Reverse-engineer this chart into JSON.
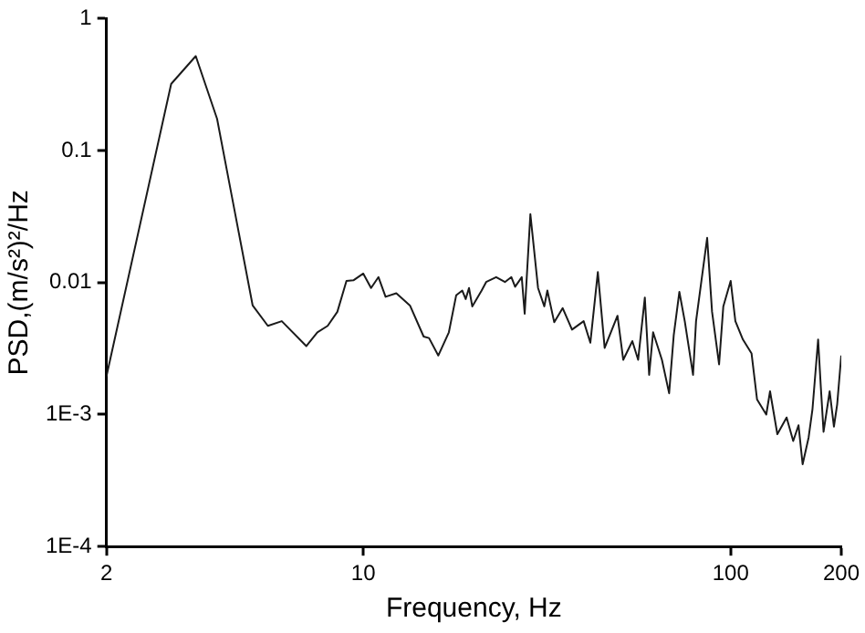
{
  "chart_data": {
    "type": "line",
    "xlabel": "Frequency, Hz",
    "ylabel": "PSD,(m/s²)²/Hz",
    "log": "xy",
    "grid": false,
    "legend": false,
    "marker": "none",
    "line_style": "solid",
    "xlim": [
      2,
      200
    ],
    "xticks": [
      2,
      10,
      100,
      200
    ],
    "ylim": [
      0.0001,
      1
    ],
    "yticks": [
      1,
      0.1,
      0.01,
      {
        "value": 0.001,
        "label": "1E-3"
      },
      {
        "value": 0.0001,
        "label": "1E-4"
      }
    ],
    "series": [
      {
        "color": "#1a1a1a",
        "x": [
          2,
          3.0,
          3.5,
          4.0,
          5.0,
          5.5,
          6.0,
          7.0,
          7.5,
          8.0,
          8.5,
          9.0,
          9.4,
          10,
          10.5,
          11,
          11.5,
          12.3,
          13.4,
          14.6,
          15.1,
          16.0,
          17.1,
          17.9,
          18.6,
          19,
          19.4,
          19.8,
          21,
          21.6,
          23,
          24.3,
          25.3,
          25.9,
          27.0,
          27.5,
          28.5,
          29.9,
          31.1,
          31.7,
          33.1,
          34.9,
          37,
          39.8,
          41.5,
          43.5,
          45.4,
          49.2,
          51,
          54,
          56,
          58.4,
          60,
          61.5,
          65,
          68,
          70,
          72.5,
          75,
          79,
          80.5,
          86.3,
          89,
          93,
          95.5,
          100,
          103,
          108,
          114,
          118,
          125,
          128,
          134,
          142,
          148,
          153,
          157,
          163,
          167,
          173,
          176,
          179,
          186,
          191,
          195,
          200
        ],
        "values": [
          0.00195,
          0.32,
          0.52,
          0.174,
          0.0067,
          0.0047,
          0.0051,
          0.0033,
          0.0042,
          0.0047,
          0.006,
          0.0103,
          0.0104,
          0.0117,
          0.0091,
          0.011,
          0.0078,
          0.0083,
          0.0067,
          0.0039,
          0.0038,
          0.0028,
          0.0042,
          0.008,
          0.0087,
          0.0075,
          0.0091,
          0.0066,
          0.0087,
          0.0101,
          0.011,
          0.0101,
          0.011,
          0.0093,
          0.011,
          0.0058,
          0.033,
          0.0091,
          0.0066,
          0.0087,
          0.005,
          0.0064,
          0.0044,
          0.0051,
          0.0035,
          0.012,
          0.0032,
          0.0056,
          0.0026,
          0.0036,
          0.0026,
          0.0077,
          0.002,
          0.0042,
          0.0026,
          0.00145,
          0.004,
          0.0085,
          0.0051,
          0.002,
          0.0051,
          0.0218,
          0.006,
          0.0024,
          0.0066,
          0.0103,
          0.0051,
          0.0037,
          0.0029,
          0.0013,
          0.001,
          0.0015,
          0.00071,
          0.00095,
          0.00063,
          0.00083,
          0.00042,
          0.00067,
          0.0011,
          0.0037,
          0.0016,
          0.00074,
          0.0015,
          0.00081,
          0.0012,
          0.0028
        ]
      }
    ]
  }
}
